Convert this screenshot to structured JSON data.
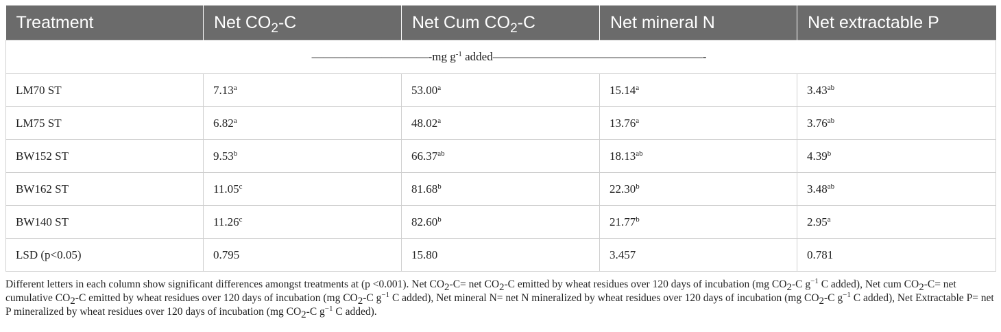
{
  "table": {
    "headers": [
      {
        "pre": "Treatment",
        "sub": "",
        "post": ""
      },
      {
        "pre": "Net CO",
        "sub": "2",
        "post": "-C"
      },
      {
        "pre": "Net Cum CO",
        "sub": "2",
        "post": "-C"
      },
      {
        "pre": "Net mineral N",
        "sub": "",
        "post": ""
      },
      {
        "pre": "Net extractable P",
        "sub": "",
        "post": ""
      }
    ],
    "units_row": {
      "pre": "——————————-mg g",
      "sup": "-1",
      "post": " added——————————————————-"
    },
    "rows": [
      {
        "treatment": "LM70 ST",
        "cells": [
          {
            "v": "7.13",
            "s": "a"
          },
          {
            "v": "53.00",
            "s": "a"
          },
          {
            "v": "15.14",
            "s": "a"
          },
          {
            "v": "3.43",
            "s": "ab"
          }
        ]
      },
      {
        "treatment": "LM75 ST",
        "cells": [
          {
            "v": "6.82",
            "s": "a"
          },
          {
            "v": "48.02",
            "s": "a"
          },
          {
            "v": "13.76",
            "s": "a"
          },
          {
            "v": "3.76",
            "s": "ab"
          }
        ]
      },
      {
        "treatment": "BW152 ST",
        "cells": [
          {
            "v": "9.53",
            "s": "b"
          },
          {
            "v": "66.37",
            "s": "ab"
          },
          {
            "v": "18.13",
            "s": "ab"
          },
          {
            "v": "4.39",
            "s": "b"
          }
        ]
      },
      {
        "treatment": "BW162 ST",
        "cells": [
          {
            "v": "11.05",
            "s": "c"
          },
          {
            "v": "81.68",
            "s": "b"
          },
          {
            "v": "22.30",
            "s": "b"
          },
          {
            "v": "3.48",
            "s": "ab"
          }
        ]
      },
      {
        "treatment": "BW140 ST",
        "cells": [
          {
            "v": "11.26",
            "s": "c"
          },
          {
            "v": "82.60",
            "s": "b"
          },
          {
            "v": "21.77",
            "s": "b"
          },
          {
            "v": "2.95",
            "s": "a"
          }
        ]
      },
      {
        "treatment": "LSD (p<0.05)",
        "cells": [
          {
            "v": "0.795",
            "s": ""
          },
          {
            "v": "15.80",
            "s": ""
          },
          {
            "v": "3.457",
            "s": ""
          },
          {
            "v": "0.781",
            "s": ""
          }
        ]
      }
    ]
  },
  "footnote": [
    {
      "t": "Different letters in each column show significant differences amongst treatments at (p <0.001). Net CO"
    },
    {
      "t": "2",
      "k": "sub"
    },
    {
      "t": "-C= net CO"
    },
    {
      "t": "2",
      "k": "sub"
    },
    {
      "t": "-C emitted by wheat residues over 120 days of incubation (mg CO"
    },
    {
      "t": "2",
      "k": "sub"
    },
    {
      "t": "-C g"
    },
    {
      "t": "−1",
      "k": "sup"
    },
    {
      "t": " C added), Net cum CO"
    },
    {
      "t": "2",
      "k": "sub"
    },
    {
      "t": "-C= net cumulative CO"
    },
    {
      "t": "2",
      "k": "sub"
    },
    {
      "t": "-C emitted by wheat residues over 120 days of incubation (mg CO"
    },
    {
      "t": "2",
      "k": "sub"
    },
    {
      "t": "-C g"
    },
    {
      "t": "−1",
      "k": "sup"
    },
    {
      "t": " C added), Net mineral N= net N mineralized by wheat residues over 120 days of incubation (mg CO"
    },
    {
      "t": "2",
      "k": "sub"
    },
    {
      "t": "-C g"
    },
    {
      "t": "−1",
      "k": "sup"
    },
    {
      "t": " C added), Net Extractable P= net P mineralized by wheat residues over 120 days of incubation (mg CO"
    },
    {
      "t": "2",
      "k": "sub"
    },
    {
      "t": "-C g"
    },
    {
      "t": "−1",
      "k": "sup"
    },
    {
      "t": " C added)."
    }
  ]
}
